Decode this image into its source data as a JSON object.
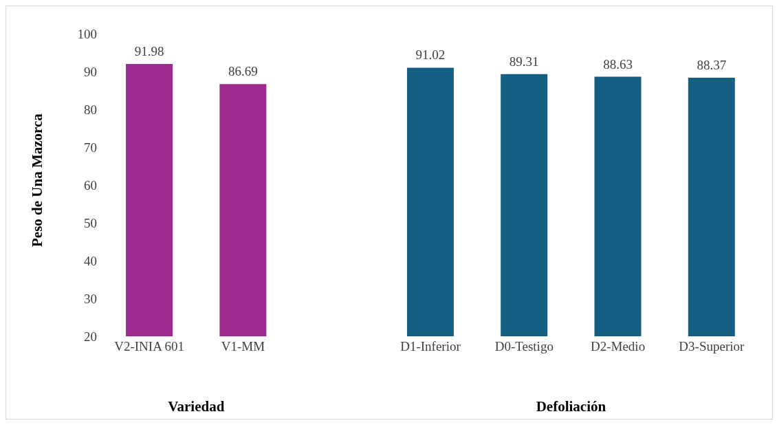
{
  "chart_data": {
    "type": "bar",
    "ylabel": "Peso de Una Mazorca",
    "categories": [
      "V2-INIA 601",
      "V1-MM",
      null,
      "D1-Inferior",
      "D0-Testigo",
      "D2-Medio",
      "D3-Superior"
    ],
    "values": [
      91.98,
      86.69,
      null,
      91.02,
      89.31,
      88.63,
      88.37
    ],
    "colors": [
      "#9c2a8e",
      "#9c2a8e",
      "#156082",
      "#156082",
      "#156082",
      "#156082",
      "#156082"
    ],
    "value_labels": [
      "91.98",
      "86.69",
      null,
      "91.02",
      "89.31",
      "88.63",
      "88.37"
    ],
    "ylim": [
      20,
      100
    ],
    "yticks": [
      20,
      30,
      40,
      50,
      60,
      70,
      80,
      90,
      100
    ],
    "grid": false,
    "annotations": [
      "Variedad",
      "Defoliación"
    ]
  }
}
